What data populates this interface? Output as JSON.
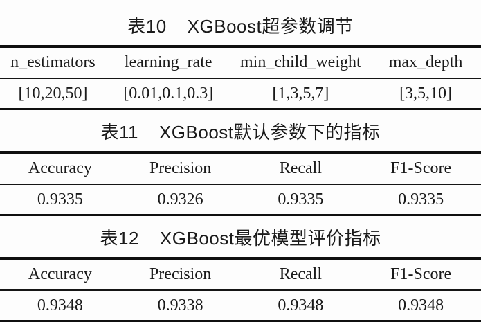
{
  "page": {
    "background": "#fdfdfd",
    "text_color": "#1a1a1a",
    "rule_color": "#101010"
  },
  "tables": [
    {
      "label": "表10",
      "title": "XGBoost超参数调节",
      "headers": [
        "n_estimators",
        "learning_rate",
        "min_child_weight",
        "max_depth"
      ],
      "rows": [
        [
          "[10,20,50]",
          "[0.01,0.1,0.3]",
          "[1,3,5,7]",
          "[3,5,10]"
        ]
      ]
    },
    {
      "label": "表11",
      "title": "XGBoost默认参数下的指标",
      "headers": [
        "Accuracy",
        "Precision",
        "Recall",
        "F1-Score"
      ],
      "rows": [
        [
          "0.9335",
          "0.9326",
          "0.9335",
          "0.9335"
        ]
      ]
    },
    {
      "label": "表12",
      "title": "XGBoost最优模型评价指标",
      "headers": [
        "Accuracy",
        "Precision",
        "Recall",
        "F1-Score"
      ],
      "rows": [
        [
          "0.9348",
          "0.9338",
          "0.9348",
          "0.9348"
        ]
      ]
    }
  ]
}
